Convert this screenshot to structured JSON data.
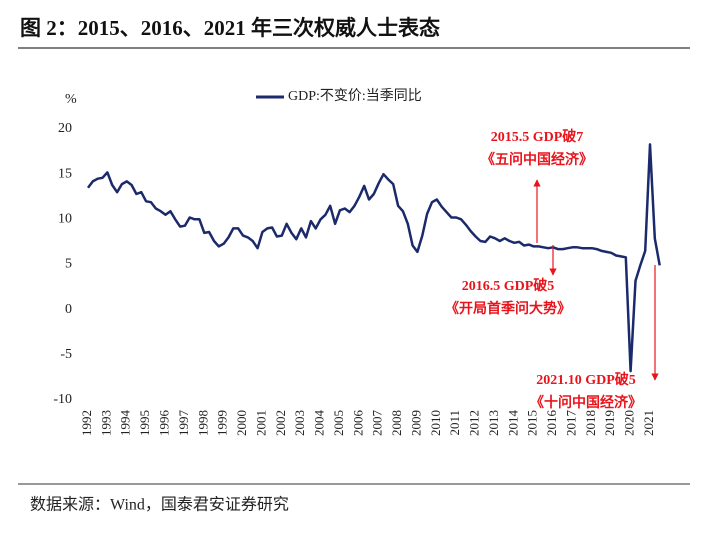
{
  "chart_data": {
    "type": "line",
    "title": "图 2：2015、2016、2021 年三次权威人士表态",
    "y_unit": "%",
    "source": "数据来源：Wind，国泰君安证券研究",
    "categories": [
      "1992",
      null,
      null,
      null,
      "1993",
      null,
      null,
      null,
      "1994",
      null,
      null,
      null,
      "1995",
      null,
      null,
      null,
      "1996",
      null,
      null,
      null,
      "1997",
      null,
      null,
      null,
      "1998",
      null,
      null,
      null,
      "1999",
      null,
      null,
      null,
      "2000",
      null,
      null,
      null,
      "2001",
      null,
      null,
      null,
      "2002",
      null,
      null,
      null,
      "2003",
      null,
      null,
      null,
      "2004",
      null,
      null,
      null,
      "2005",
      null,
      null,
      null,
      "2006",
      null,
      null,
      null,
      "2007",
      null,
      null,
      null,
      "2008",
      null,
      null,
      null,
      "2009",
      null,
      null,
      null,
      "2010",
      null,
      null,
      null,
      "2011",
      null,
      null,
      null,
      "2012",
      null,
      null,
      null,
      "2013",
      null,
      null,
      null,
      "2014",
      null,
      null,
      null,
      "2015",
      null,
      null,
      null,
      "2016",
      null,
      null,
      null,
      "2017",
      null,
      null,
      null,
      "2018",
      null,
      null,
      null,
      "2019",
      null,
      null,
      null,
      "2020",
      null,
      null,
      null,
      "2021",
      null,
      null
    ],
    "series": [
      {
        "name": "GDP:不变价:当季同比",
        "color": "#1b2a6b",
        "values": [
          13.5,
          14.2,
          14.5,
          14.6,
          15.2,
          13.8,
          13.0,
          13.9,
          14.2,
          13.8,
          12.8,
          13.0,
          12.0,
          11.9,
          11.2,
          10.9,
          10.5,
          10.9,
          10.0,
          9.2,
          9.3,
          10.2,
          10.0,
          10.0,
          8.5,
          8.6,
          7.6,
          7.0,
          7.3,
          8.0,
          9.0,
          9.0,
          8.2,
          8.0,
          7.6,
          6.8,
          8.6,
          9.0,
          9.1,
          8.1,
          8.2,
          9.5,
          8.5,
          7.8,
          9.0,
          8.0,
          9.8,
          9.0,
          10.0,
          10.5,
          11.5,
          9.5,
          11.0,
          11.2,
          10.8,
          11.5,
          12.5,
          13.7,
          12.2,
          12.8,
          14.0,
          15.0,
          14.4,
          13.9,
          11.5,
          10.9,
          9.5,
          7.1,
          6.4,
          8.2,
          10.6,
          11.9,
          12.2,
          11.4,
          10.8,
          10.2,
          10.2,
          10.0,
          9.4,
          8.7,
          8.1,
          7.6,
          7.5,
          8.1,
          7.9,
          7.6,
          7.9,
          7.6,
          7.4,
          7.5,
          7.1,
          7.2,
          7.0,
          7.0,
          6.9,
          6.8,
          6.9,
          6.7,
          6.7,
          6.8,
          6.9,
          6.9,
          6.8,
          6.8,
          6.8,
          6.7,
          6.5,
          6.4,
          6.3,
          6.0,
          5.9,
          5.8,
          -6.8,
          3.2,
          4.9,
          6.5,
          18.3,
          7.9,
          4.9
        ]
      }
    ],
    "ylim": [
      -10,
      20
    ],
    "yticks": [
      -10,
      -5,
      0,
      5,
      10,
      15,
      20
    ],
    "grid": false,
    "annotations": [
      {
        "text": "2015.5 GDP破7",
        "subtext": "《五问中国经济》"
      },
      {
        "text": "2016.5 GDP破5",
        "subtext": "《开局首季问大势》"
      },
      {
        "text": "2021.10 GDP破5",
        "subtext": "《十问中国经济》"
      }
    ]
  }
}
